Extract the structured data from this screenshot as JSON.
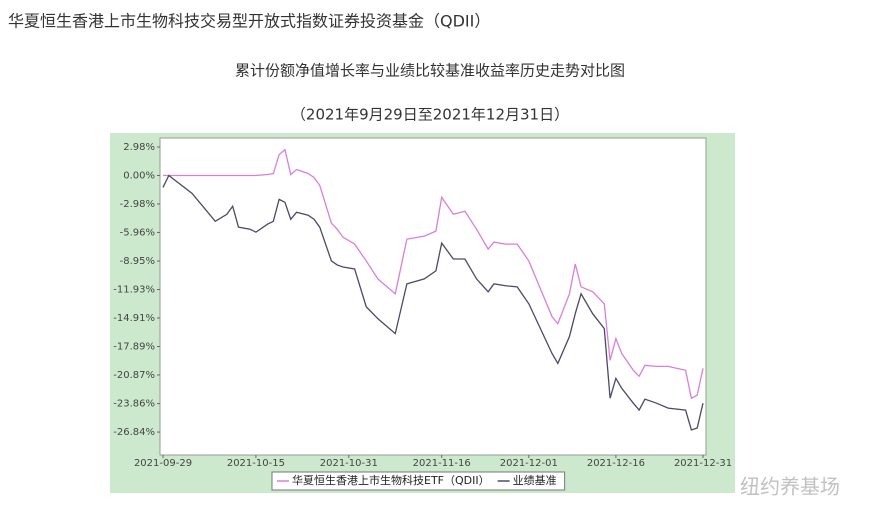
{
  "chart_data": {
    "type": "line",
    "title": "华夏恒生香港上市生物科技交易型开放式指数证券投资基金（QDII）",
    "subtitle": "累计份额净值增长率与业绩比较基准收益率历史走势对比图",
    "date_range": "（2021年9月29日至2021年12月31日）",
    "watermark": "纽约养基场",
    "x": [
      "2021-09-29",
      "2021-09-30",
      "2021-10-04",
      "2021-10-08",
      "2021-10-10",
      "2021-10-11",
      "2021-10-12",
      "2021-10-14",
      "2021-10-15",
      "2021-10-17",
      "2021-10-18",
      "2021-10-19",
      "2021-10-20",
      "2021-10-21",
      "2021-10-22",
      "2021-10-24",
      "2021-10-25",
      "2021-10-26",
      "2021-10-28",
      "2021-10-29",
      "2021-10-30",
      "2021-11-01",
      "2021-11-03",
      "2021-11-05",
      "2021-11-08",
      "2021-11-10",
      "2021-11-13",
      "2021-11-15",
      "2021-11-16",
      "2021-11-18",
      "2021-11-20",
      "2021-11-22",
      "2021-11-24",
      "2021-11-25",
      "2021-11-27",
      "2021-11-29",
      "2021-12-01",
      "2021-12-03",
      "2021-12-05",
      "2021-12-06",
      "2021-12-08",
      "2021-12-09",
      "2021-12-10",
      "2021-12-12",
      "2021-12-14",
      "2021-12-15",
      "2021-12-16",
      "2021-12-17",
      "2021-12-19",
      "2021-12-20",
      "2021-12-21",
      "2021-12-23",
      "2021-12-25",
      "2021-12-28",
      "2021-12-29",
      "2021-12-30",
      "2021-12-31"
    ],
    "series": [
      {
        "name": "华夏恒生香港上市生物科技ETF（QDII）",
        "color": "#d97fd9",
        "values": [
          0,
          0,
          0,
          0,
          0,
          0,
          0,
          0,
          0,
          0.1,
          0.2,
          2.18,
          2.7,
          0.1,
          0.62,
          0.21,
          -0.21,
          -1.04,
          -4.99,
          -5.62,
          -6.45,
          -7.18,
          -8.94,
          -10.82,
          -12.38,
          -6.66,
          -6.34,
          -5.82,
          -2.29,
          -4.06,
          -3.74,
          -5.62,
          -7.7,
          -6.97,
          -7.18,
          -7.18,
          -8.94,
          -11.86,
          -14.77,
          -15.5,
          -12.38,
          -9.26,
          -11.65,
          -12.17,
          -13.42,
          -19.34,
          -17.06,
          -18.62,
          -20.38,
          -21.01,
          -19.86,
          -19.97,
          -19.97,
          -20.38,
          -23.3,
          -22.98,
          -20.18
        ]
      },
      {
        "name": "业绩基准",
        "color": "#4a4a68",
        "values": [
          -1.25,
          0,
          -1.87,
          -4.79,
          -4.06,
          -3.22,
          -5.41,
          -5.62,
          -5.93,
          -5.1,
          -4.79,
          -2.5,
          -2.81,
          -4.58,
          -3.85,
          -4.16,
          -4.58,
          -5.41,
          -8.94,
          -9.36,
          -9.57,
          -9.78,
          -13.73,
          -14.98,
          -16.54,
          -11.34,
          -10.82,
          -9.98,
          -7.07,
          -8.74,
          -8.74,
          -10.82,
          -12.17,
          -11.34,
          -11.54,
          -11.65,
          -13.42,
          -16.02,
          -18.62,
          -19.66,
          -16.85,
          -14.46,
          -12.38,
          -14.46,
          -16.02,
          -23.3,
          -21.22,
          -22.26,
          -23.82,
          -24.54,
          -23.4,
          -23.82,
          -24.34,
          -24.54,
          -26.62,
          -26.42,
          -23.82
        ]
      }
    ],
    "xlim": [
      "2021-09-29",
      "2021-12-31"
    ],
    "xticks": [
      "2021-09-29",
      "2021-10-15",
      "2021-10-31",
      "2021-11-16",
      "2021-12-01",
      "2021-12-16",
      "2021-12-31"
    ],
    "ylim": [
      -29.24,
      3.92
    ],
    "yticks": [
      {
        "value": 2.98,
        "label": "2.98%"
      },
      {
        "value": 0,
        "label": "0.00%"
      },
      {
        "value": -2.98,
        "label": "-2.98%"
      },
      {
        "value": -5.96,
        "label": "-5.96%"
      },
      {
        "value": -8.95,
        "label": "-8.95%"
      },
      {
        "value": -11.93,
        "label": "-11.93%"
      },
      {
        "value": -14.91,
        "label": "-14.91%"
      },
      {
        "value": -17.89,
        "label": "-17.89%"
      },
      {
        "value": -20.87,
        "label": "-20.87%"
      },
      {
        "value": -23.86,
        "label": "-23.86%"
      },
      {
        "value": -26.84,
        "label": "-26.84%"
      }
    ],
    "grid": false
  }
}
